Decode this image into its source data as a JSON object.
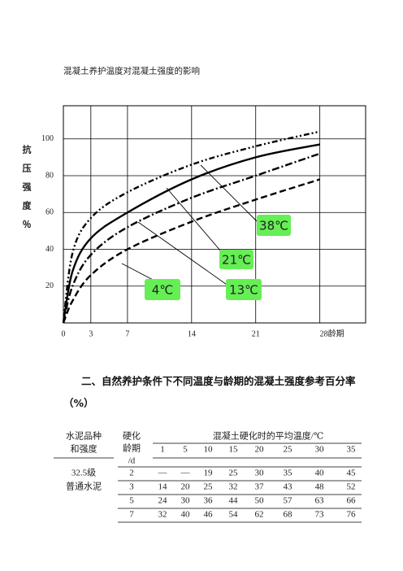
{
  "chart_data": {
    "type": "line",
    "title": "混凝土养护温度对混凝土强度的影响",
    "y_label": "抗压强度％",
    "x": [
      0,
      1,
      3,
      7,
      14,
      21,
      28
    ],
    "series": [
      {
        "name": "38℃",
        "color": "#000000",
        "dash": "7,3,2,3,2,3",
        "values": [
          0,
          38,
          57,
          71,
          86,
          96,
          104
        ]
      },
      {
        "name": "21℃",
        "color": "#000000",
        "dash": "none",
        "values": [
          0,
          28,
          46,
          60,
          78,
          90,
          97
        ]
      },
      {
        "name": "13℃",
        "color": "#000000",
        "dash": "9,3,2,3",
        "values": [
          0,
          20,
          37,
          52,
          68,
          80,
          92
        ]
      },
      {
        "name": "4℃",
        "color": "#000000",
        "dash": "8,4",
        "values": [
          0,
          12,
          26,
          40,
          55,
          67,
          78
        ]
      }
    ],
    "label_color": "#66ee55",
    "xlim": [
      0,
      33
    ],
    "xticks": [
      0,
      3,
      7,
      14,
      21,
      {
        "value": 28,
        "label": "28龄期"
      }
    ],
    "ylim": [
      0,
      118
    ],
    "yticks": [
      20,
      40,
      60,
      80,
      100
    ],
    "grid": true
  },
  "heading": "二、自然养护条件下不同温度与龄期的混凝土强度参考百分率（%）",
  "table": {
    "col1_header": [
      "水泥品种",
      "和强度"
    ],
    "col2_header": [
      "硬化",
      "龄期",
      "/d"
    ],
    "temp_header": "混凝土硬化时的平均温度/℃",
    "temperatures": [
      1,
      5,
      10,
      15,
      20,
      25,
      30,
      35
    ],
    "cement": [
      "32.5级",
      "普通水泥"
    ],
    "rows": [
      {
        "age": 2,
        "values": [
          "—",
          "—",
          19,
          25,
          30,
          35,
          40,
          45
        ]
      },
      {
        "age": 3,
        "values": [
          14,
          20,
          25,
          32,
          37,
          43,
          48,
          52
        ]
      },
      {
        "age": 5,
        "values": [
          24,
          30,
          36,
          44,
          50,
          57,
          63,
          66
        ]
      },
      {
        "age": 7,
        "values": [
          32,
          40,
          46,
          54,
          62,
          68,
          73,
          76
        ]
      }
    ]
  }
}
